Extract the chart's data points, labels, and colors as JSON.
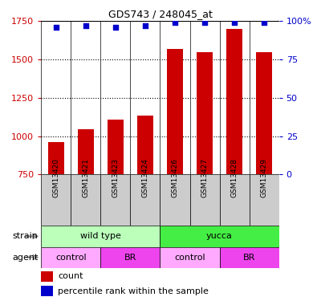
{
  "title": "GDS743 / 248045_at",
  "categories": [
    "GSM13420",
    "GSM13421",
    "GSM13423",
    "GSM13424",
    "GSM13426",
    "GSM13427",
    "GSM13428",
    "GSM13429"
  ],
  "bar_values": [
    960,
    1045,
    1110,
    1135,
    1570,
    1547,
    1700,
    1547
  ],
  "dot_values": [
    96,
    97,
    96,
    97,
    99,
    99,
    99,
    99
  ],
  "bar_color": "#cc0000",
  "dot_color": "#0000cc",
  "ylim_left": [
    750,
    1750
  ],
  "ylim_right": [
    0,
    100
  ],
  "yticks_left": [
    750,
    1000,
    1250,
    1500,
    1750
  ],
  "yticks_right": [
    0,
    25,
    50,
    75,
    100
  ],
  "ytick_labels_right": [
    "0",
    "25",
    "50",
    "75",
    "100%"
  ],
  "strain_labels": [
    {
      "label": "wild type",
      "start": 0,
      "end": 4,
      "color": "#bbffbb"
    },
    {
      "label": "yucca",
      "start": 4,
      "end": 8,
      "color": "#44ee44"
    }
  ],
  "agent_labels": [
    {
      "label": "control",
      "start": 0,
      "end": 2,
      "color": "#ffaaff"
    },
    {
      "label": "BR",
      "start": 2,
      "end": 4,
      "color": "#ee44ee"
    },
    {
      "label": "control",
      "start": 4,
      "end": 6,
      "color": "#ffaaff"
    },
    {
      "label": "BR",
      "start": 6,
      "end": 8,
      "color": "#ee44ee"
    }
  ],
  "legend_count_label": "count",
  "legend_pct_label": "percentile rank within the sample",
  "strain_row_label": "strain",
  "agent_row_label": "agent",
  "xtick_bg_color": "#cccccc",
  "bar_width": 0.55
}
